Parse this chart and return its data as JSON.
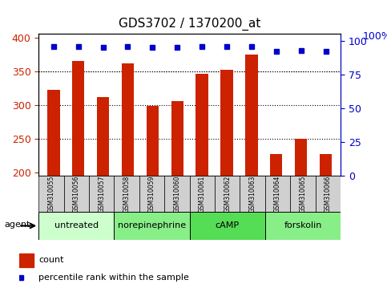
{
  "title": "GDS3702 / 1370200_at",
  "samples": [
    "GSM310055",
    "GSM310056",
    "GSM310057",
    "GSM310058",
    "GSM310059",
    "GSM310060",
    "GSM310061",
    "GSM310062",
    "GSM310063",
    "GSM310064",
    "GSM310065",
    "GSM310066"
  ],
  "counts": [
    323,
    365,
    312,
    362,
    299,
    306,
    346,
    352,
    375,
    228,
    250,
    228
  ],
  "percentiles": [
    96,
    96,
    95,
    96,
    95,
    95,
    96,
    96,
    96,
    92,
    93,
    92
  ],
  "agents": [
    {
      "label": "untreated",
      "start": 0,
      "end": 3,
      "color": "#ccffcc"
    },
    {
      "label": "norepinephrine",
      "start": 3,
      "end": 6,
      "color": "#88ee88"
    },
    {
      "label": "cAMP",
      "start": 6,
      "end": 9,
      "color": "#55dd55"
    },
    {
      "label": "forskolin",
      "start": 9,
      "end": 12,
      "color": "#88ee88"
    }
  ],
  "ylim_left": [
    195,
    405
  ],
  "ylim_right": [
    0,
    105
  ],
  "yticks_left": [
    200,
    250,
    300,
    350,
    400
  ],
  "yticks_right": [
    0,
    25,
    50,
    75,
    100
  ],
  "bar_color": "#cc2200",
  "dot_color": "#0000cc",
  "bar_width": 0.5,
  "grid_yticks": [
    250,
    300,
    350
  ],
  "background_color": "#ffffff",
  "left_tick_color": "#cc2200",
  "right_tick_color": "#0000cc"
}
